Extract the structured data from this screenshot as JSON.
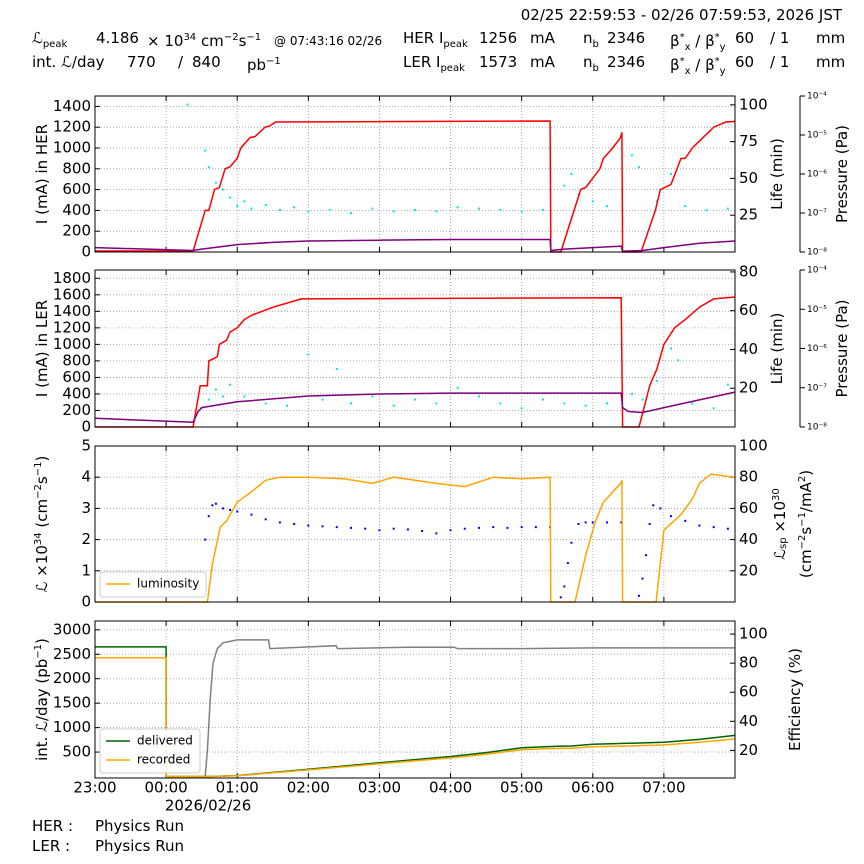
{
  "header": {
    "range": "02/25 22:59:53 - 02/26 07:59:53, 2026 JST",
    "rows": [
      [
        [
          "ℒ",
          {
            "sub": "peak"
          }
        ],
        [
          "4.186"
        ],
        [
          "× 10",
          {
            "sup": "34"
          },
          " cm",
          {
            "sup": "−2"
          },
          "s",
          {
            "sup": "−1"
          }
        ],
        [
          "@ 07:43:16 02/26"
        ],
        [
          "HER I",
          {
            "sub": "peak"
          }
        ],
        [
          "1256"
        ],
        [
          "mA"
        ],
        [
          "n",
          {
            "sub": "b"
          }
        ],
        [
          "2346"
        ],
        [
          "β",
          {
            "sup": "*"
          },
          {
            "sub": "x"
          },
          " / β",
          {
            "sup": "*"
          },
          {
            "sub": "y"
          }
        ],
        [
          "60"
        ],
        [
          "/ 1"
        ],
        [
          "mm"
        ]
      ],
      [
        [
          "int. ℒ/day"
        ],
        [
          "770"
        ],
        [
          "/"
        ],
        [
          "840"
        ],
        [
          "pb",
          {
            "sup": "−1"
          }
        ],
        [
          "LER I",
          {
            "sub": "peak"
          }
        ],
        [
          "1573"
        ],
        [
          "mA"
        ],
        [
          "n",
          {
            "sub": "b"
          }
        ],
        [
          "2346"
        ],
        [
          "β",
          {
            "sup": "*"
          },
          {
            "sub": "x"
          },
          " / β",
          {
            "sup": "*"
          },
          {
            "sub": "y"
          }
        ],
        [
          "60"
        ],
        [
          "/ 1"
        ],
        [
          "mm"
        ]
      ]
    ]
  },
  "footer": [
    [
      "HER :",
      "Physics Run"
    ],
    [
      "LER :",
      "Physics Run"
    ]
  ],
  "chart_data": [
    {
      "type": "line",
      "grid": true,
      "ylabel": [
        "I (mA) in HER"
      ],
      "y2label": [
        "Life (min)"
      ],
      "y3label": [
        "Pressure (Pa)"
      ],
      "ylim": [
        0,
        1500
      ],
      "yticks": [
        0,
        200,
        400,
        600,
        800,
        1000,
        1200,
        1400
      ],
      "y2lim": [
        0,
        106
      ],
      "y2ticks": [
        25,
        50,
        75,
        100
      ],
      "y3scale": "log",
      "y3lim": [
        1e-08,
        0.0001
      ],
      "y3ticks": [
        {
          "value": 1e-08,
          "label": "10⁻⁸"
        },
        {
          "value": 1e-07,
          "label": "10⁻⁷"
        },
        {
          "value": 1e-06,
          "label": "10⁻⁶"
        },
        {
          "value": 1e-05,
          "label": "10⁻⁵"
        },
        {
          "value": 0.0001,
          "label": "10⁻⁴"
        }
      ],
      "series": [
        {
          "type": "scatter",
          "axis": "y3",
          "color": "#00e5ee",
          "x": [
            1.3,
            1.55,
            1.6,
            1.7,
            1.8,
            1.9,
            2.0,
            2.1,
            2.2,
            2.4,
            2.6,
            2.8,
            3.0,
            3.3,
            3.6,
            3.9,
            4.2,
            4.5,
            4.8,
            5.1,
            5.4,
            5.7,
            6.0,
            6.3,
            6.6,
            6.7,
            6.8,
            7.0,
            7.2,
            7.55,
            7.65,
            7.9,
            8.1,
            8.3,
            8.6,
            8.9
          ],
          "values": [
            6e-05,
            4e-06,
            1.5e-06,
            6e-07,
            4e-07,
            2.5e-07,
            1.5e-07,
            2e-07,
            1.3e-07,
            1.6e-07,
            1.2e-07,
            1.4e-07,
            1.1e-07,
            1.2e-07,
            1e-07,
            1.3e-07,
            1.1e-07,
            1.2e-07,
            1.1e-07,
            1.4e-07,
            1.3e-07,
            1.2e-07,
            1.1e-07,
            1.2e-07,
            5e-07,
            1e-06,
            3e-07,
            2e-07,
            1.5e-07,
            3e-06,
            1.5e-06,
            2e-07,
            1e-06,
            1.5e-07,
            1.2e-07,
            1.3e-07
          ]
        },
        {
          "type": "line",
          "color": "#ff0000",
          "x": [
            0,
            1.38,
            1.55,
            1.6,
            1.68,
            1.75,
            1.83,
            1.9,
            2.0,
            2.05,
            2.18,
            2.25,
            2.39,
            2.45,
            2.54,
            6.4,
            6.41,
            6.55,
            6.83,
            6.9,
            7.1,
            7.15,
            7.28,
            7.39,
            7.41,
            7.42,
            7.68,
            7.88,
            7.95,
            8.1,
            8.24,
            8.3,
            8.4,
            8.55,
            8.7,
            8.87,
            9.0
          ],
          "values": [
            10,
            10,
            400,
            400,
            600,
            620,
            800,
            820,
            900,
            1000,
            1100,
            1110,
            1200,
            1210,
            1250,
            1260,
            0,
            0,
            600,
            620,
            800,
            900,
            1000,
            1100,
            1150,
            0,
            0,
            400,
            600,
            650,
            900,
            900,
            1000,
            1100,
            1200,
            1250,
            1256
          ]
        },
        {
          "type": "line",
          "axis": "y2",
          "color": "#800080",
          "x": [
            0,
            1.38,
            1.5,
            2.0,
            2.5,
            3.0,
            4.0,
            5.0,
            6.4,
            6.41,
            6.6,
            7.0,
            7.4,
            7.42,
            7.7,
            8.0,
            8.5,
            9.0
          ],
          "values": [
            3,
            1,
            2,
            5,
            6.5,
            7.5,
            8,
            8.5,
            8.5,
            1,
            2,
            3,
            4,
            0.5,
            1,
            3,
            6,
            7.5
          ]
        }
      ]
    },
    {
      "type": "line",
      "grid": true,
      "ylabel": [
        "I (mA) in LER"
      ],
      "y2label": [
        "Life (min)"
      ],
      "y3label": [
        "Pressure (Pa)"
      ],
      "ylim": [
        0,
        1900
      ],
      "yticks": [
        0,
        200,
        400,
        600,
        800,
        1000,
        1200,
        1400,
        1600,
        1800
      ],
      "y2lim": [
        0,
        81
      ],
      "y2ticks": [
        20,
        40,
        60,
        80
      ],
      "y3scale": "log",
      "y3lim": [
        1e-08,
        0.0001
      ],
      "y3ticks": [
        {
          "value": 1e-08,
          "label": "10⁻⁸"
        },
        {
          "value": 1e-07,
          "label": "10⁻⁷"
        },
        {
          "value": 1e-06,
          "label": "10⁻⁶"
        },
        {
          "value": 1e-05,
          "label": "10⁻⁵"
        },
        {
          "value": 0.0001,
          "label": "10⁻⁴"
        }
      ],
      "series": [
        {
          "type": "scatter",
          "axis": "y3",
          "color": "#00e5ee",
          "x": [
            1.5,
            1.6,
            1.7,
            1.8,
            1.9,
            2.1,
            2.4,
            2.7,
            3.0,
            3.2,
            3.4,
            3.6,
            3.9,
            4.2,
            4.5,
            4.8,
            5.1,
            5.4,
            5.7,
            6.0,
            6.3,
            6.6,
            6.9,
            7.2,
            7.55,
            7.7,
            7.9,
            8.1,
            8.2,
            8.4,
            8.7,
            8.9
          ],
          "values": [
            3e-08,
            5e-08,
            9e-08,
            6e-08,
            1.2e-07,
            6e-08,
            4e-08,
            3.5e-08,
            7e-07,
            5e-08,
            3e-07,
            4e-08,
            6e-08,
            3.5e-08,
            5e-08,
            4e-08,
            1e-07,
            6e-08,
            4e-08,
            3e-08,
            5e-08,
            4e-08,
            3.5e-08,
            4e-08,
            7e-08,
            5e-08,
            1.5e-07,
            1e-06,
            5e-07,
            4e-08,
            3e-08,
            1.2e-07
          ]
        },
        {
          "type": "line",
          "color": "#ff0000",
          "x": [
            0,
            1.38,
            1.48,
            1.58,
            1.6,
            1.72,
            1.75,
            1.85,
            1.9,
            2.0,
            2.1,
            2.2,
            2.35,
            2.5,
            2.7,
            2.9,
            7.4,
            7.42,
            7.65,
            7.8,
            7.9,
            8.0,
            8.15,
            8.3,
            8.5,
            8.7,
            9.0
          ],
          "values": [
            0,
            0,
            500,
            500,
            800,
            850,
            1000,
            1050,
            1150,
            1200,
            1300,
            1350,
            1400,
            1450,
            1500,
            1550,
            1565,
            0,
            0,
            500,
            700,
            1000,
            1200,
            1300,
            1450,
            1550,
            1573
          ]
        },
        {
          "type": "line",
          "axis": "y2",
          "color": "#800080",
          "x": [
            0,
            1.38,
            1.45,
            1.5,
            2.0,
            2.5,
            3.0,
            4.0,
            5.0,
            7.4,
            7.42,
            7.5,
            7.7,
            8.0,
            8.5,
            9.0
          ],
          "values": [
            4.5,
            2.5,
            8,
            10,
            13,
            14.5,
            16,
            17,
            17.5,
            17.5,
            10,
            8,
            7.5,
            10,
            14,
            18
          ]
        }
      ]
    },
    {
      "type": "line",
      "grid": true,
      "legend": "lower left",
      "ylabel": [
        "ℒ ×10",
        {
          "sup": "34"
        },
        " (cm",
        {
          "sup": "−2"
        },
        "s",
        {
          "sup": "−1"
        },
        ")"
      ],
      "y2label": [
        [
          "ℒ",
          {
            "sub": "sp"
          },
          " ×10",
          {
            "sup": "30"
          }
        ],
        [
          "(cm",
          {
            "sup": "−2"
          },
          "s",
          {
            "sup": "−1"
          },
          "/mA",
          {
            "sup": "2"
          },
          ")"
        ]
      ],
      "ylim": [
        0,
        5
      ],
      "yticks": [
        0,
        1,
        2,
        3,
        4,
        5
      ],
      "y2lim": [
        0,
        100
      ],
      "y2ticks": [
        20,
        40,
        60,
        80,
        100
      ],
      "series": [
        {
          "type": "scatter",
          "axis": "y2",
          "color": "#0000ff",
          "x": [
            1.55,
            1.6,
            1.65,
            1.7,
            1.8,
            1.9,
            2.0,
            2.2,
            2.4,
            2.6,
            2.8,
            3.0,
            3.2,
            3.4,
            3.6,
            3.8,
            4.0,
            4.2,
            4.4,
            4.6,
            4.8,
            5.0,
            5.2,
            5.4,
            5.6,
            5.8,
            6.0,
            6.2,
            6.4,
            6.55,
            6.6,
            6.65,
            6.7,
            6.8,
            6.9,
            7.0,
            7.2,
            7.4,
            7.65,
            7.7,
            7.75,
            7.8,
            7.85,
            7.95,
            8.1,
            8.3,
            8.5,
            8.7,
            8.9
          ],
          "values": [
            40,
            55,
            62,
            63,
            60,
            59,
            58,
            56,
            53,
            51,
            50,
            49,
            48.5,
            48,
            47.5,
            47,
            46,
            47,
            46.5,
            45.5,
            44,
            46,
            47,
            47.5,
            48,
            47.5,
            48,
            48,
            48,
            3,
            10,
            25,
            38,
            50,
            51,
            51,
            51,
            51,
            4,
            15,
            30,
            50,
            62,
            60,
            55,
            52,
            49,
            48,
            47
          ]
        },
        {
          "type": "line",
          "name": "luminosity",
          "color": "#ffa500",
          "x": [
            0,
            1.58,
            1.65,
            1.76,
            1.85,
            2.0,
            2.18,
            2.4,
            2.6,
            3.0,
            3.5,
            3.9,
            4.2,
            4.5,
            4.8,
            5.2,
            5.6,
            6.0,
            6.4,
            6.41,
            6.75,
            6.9,
            7.04,
            7.15,
            7.39,
            7.41,
            7.42,
            7.89,
            8.0,
            8.24,
            8.4,
            8.5,
            8.66,
            9.0
          ],
          "values": [
            0,
            0,
            1.2,
            2.4,
            2.6,
            3.2,
            3.5,
            3.9,
            4.0,
            4.0,
            3.95,
            3.8,
            4.0,
            3.9,
            3.8,
            3.7,
            4.0,
            3.95,
            4.0,
            0,
            0,
            1.5,
            2.6,
            3.2,
            3.8,
            3.9,
            0,
            0,
            2.3,
            2.8,
            3.3,
            3.8,
            4.1,
            4.0
          ]
        }
      ]
    },
    {
      "type": "line",
      "grid": true,
      "legend": "lower left",
      "ylabel": [
        "int. ℒ/day (pb",
        {
          "sup": "−1"
        },
        ")"
      ],
      "y2label": [
        "Efficiency (%)"
      ],
      "ylim": [
        -30,
        3180
      ],
      "yticks": [
        500,
        1000,
        1500,
        2000,
        2500,
        3000
      ],
      "y2lim": [
        1,
        109
      ],
      "y2ticks": [
        20,
        40,
        60,
        80,
        100
      ],
      "xlim": [
        0,
        9
      ],
      "xticks": [
        {
          "value": 0,
          "label": "23:00"
        },
        {
          "value": 1,
          "label": "00:00"
        },
        {
          "value": 2,
          "label": "01:00"
        },
        {
          "value": 3,
          "label": "02:00"
        },
        {
          "value": 4,
          "label": "03:00"
        },
        {
          "value": 5,
          "label": "04:00"
        },
        {
          "value": 6,
          "label": "05:00"
        },
        {
          "value": 7,
          "label": "06:00"
        },
        {
          "value": 8,
          "label": "07:00"
        }
      ],
      "date_label": "2026/02/26",
      "series": [
        {
          "type": "line",
          "axis": "y2",
          "color": "#808080",
          "x": [
            1.55,
            1.58,
            1.62,
            1.66,
            1.72,
            1.8,
            2.0,
            2.44,
            2.46,
            2.9,
            3.39,
            3.41,
            4.4,
            5.05,
            5.1,
            6.0,
            7.0,
            8.0,
            9.0
          ],
          "values": [
            2,
            20,
            55,
            80,
            90,
            94,
            96,
            96,
            90,
            91,
            92,
            90,
            91,
            91,
            90,
            90,
            90.5,
            90.5,
            90.5
          ]
        },
        {
          "type": "line",
          "name": "delivered",
          "color": "#006400",
          "x": [
            0,
            1.0,
            1.0,
            1.6,
            2.0,
            3.0,
            4.0,
            5.0,
            5.5,
            6.0,
            6.5,
            6.7,
            7.0,
            7.5,
            8.0,
            8.5,
            9.0
          ],
          "values": [
            2650,
            2650,
            0,
            0,
            20,
            150,
            280,
            410,
            490,
            590,
            620,
            625,
            660,
            680,
            700,
            760,
            840
          ]
        },
        {
          "type": "line",
          "name": "recorded",
          "color": "#ffa500",
          "x": [
            0,
            1.0,
            1.0,
            1.6,
            2.0,
            3.0,
            4.0,
            5.0,
            5.5,
            6.0,
            6.5,
            6.7,
            7.0,
            7.5,
            8.0,
            8.5,
            9.0
          ],
          "values": [
            2430,
            2430,
            0,
            0,
            15,
            135,
            260,
            380,
            455,
            550,
            575,
            580,
            610,
            625,
            645,
            700,
            770
          ]
        }
      ]
    }
  ]
}
